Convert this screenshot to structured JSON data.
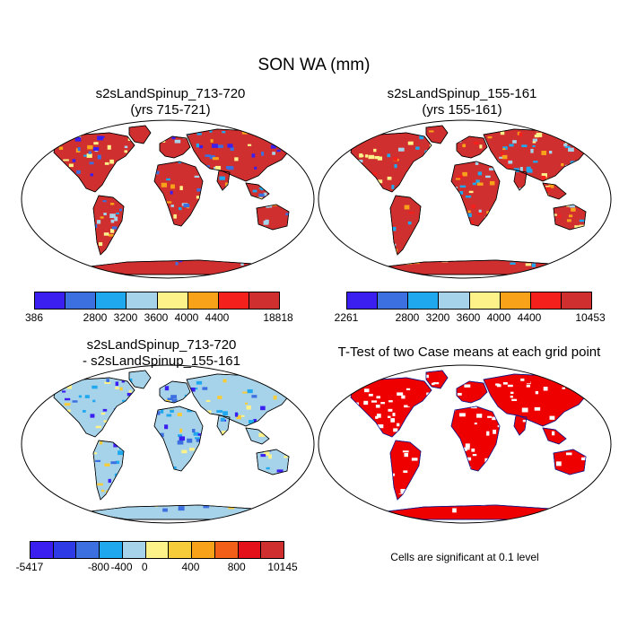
{
  "title": "SON WA (mm)",
  "panels": [
    {
      "title_line1": "s2sLandSpinup_713-720",
      "title_line2": "(yrs 715-721)",
      "colorbar": {
        "colors": [
          "#3a1ff0",
          "#3c6fe0",
          "#1fa8ee",
          "#a6d3ea",
          "#fdf28a",
          "#f8a21a",
          "#f3201c",
          "#cf2f2f"
        ],
        "labels": [
          "386",
          "2800",
          "3200",
          "3600",
          "4000",
          "4400",
          "18818"
        ]
      }
    },
    {
      "title_line1": "s2sLandSpinup_155-161",
      "title_line2": "(yrs 155-161)",
      "colorbar": {
        "colors": [
          "#3a1ff0",
          "#3c6fe0",
          "#1fa8ee",
          "#a6d3ea",
          "#fdf28a",
          "#f8a21a",
          "#f3201c",
          "#cf2f2f"
        ],
        "labels": [
          "2261",
          "2800",
          "3200",
          "3600",
          "4000",
          "4400",
          "10453"
        ]
      }
    },
    {
      "title_line1": "s2sLandSpinup_713-720",
      "title_line2": "- s2sLandSpinup_155-161",
      "colorbar": {
        "colors": [
          "#3a1ff0",
          "#2d3ae6",
          "#3c6fe0",
          "#1fa8ee",
          "#a6d3ea",
          "#fdf28a",
          "#f6cc3a",
          "#f8a21a",
          "#f25f18",
          "#e4101a",
          "#cf2f2f"
        ],
        "labels": [
          "-5417",
          "-800",
          "-400",
          "0",
          "400",
          "800",
          "10145"
        ]
      }
    },
    {
      "title_line1": "T-Test of two Case means at each grid point",
      "note": "Cells are significant at 0.1 level"
    }
  ]
}
